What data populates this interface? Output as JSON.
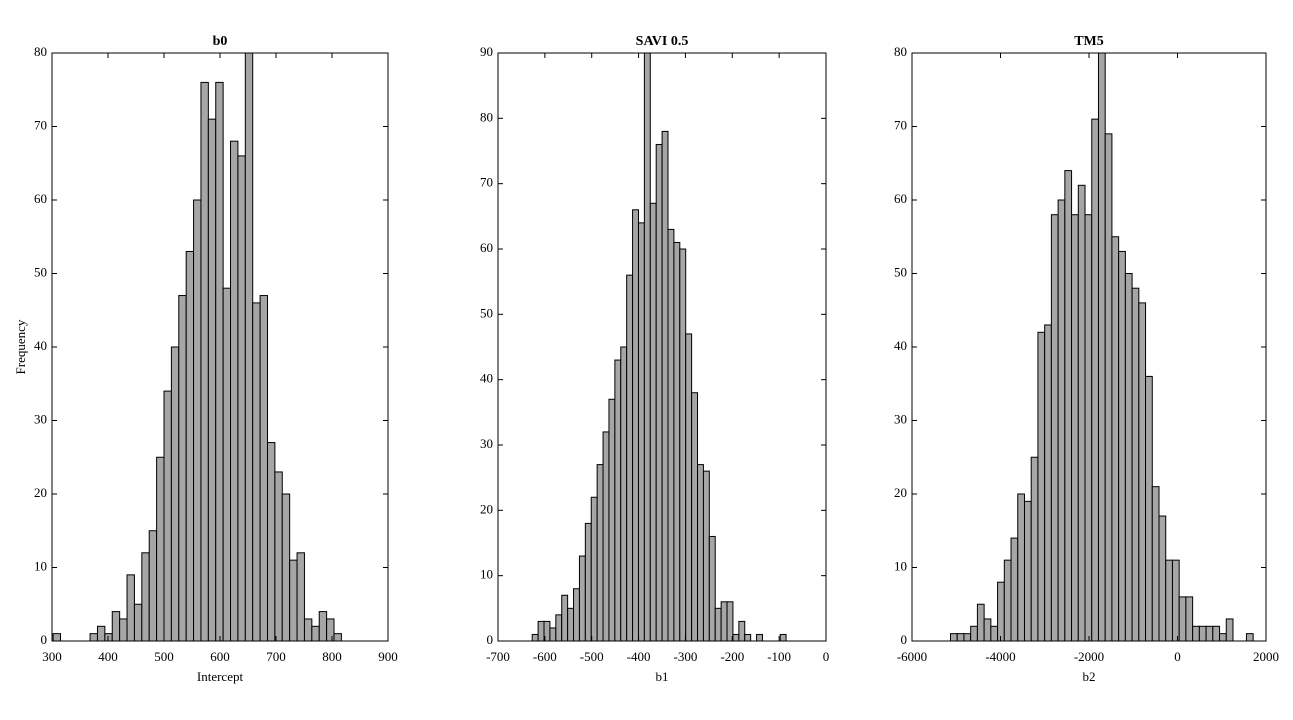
{
  "chart_data": [
    {
      "type": "histogram",
      "title": "b0",
      "xlabel": "Intercept",
      "ylabel": "Frequency",
      "color": "#a6a6a6",
      "xlim": [
        300,
        900
      ],
      "ylim": [
        0,
        80
      ],
      "xticks": [
        300,
        400,
        500,
        600,
        700,
        800,
        900
      ],
      "yticks": [
        0,
        10,
        20,
        30,
        40,
        50,
        60,
        70,
        80
      ],
      "bins": [
        302,
        315.2,
        328.4,
        341.6,
        354.8,
        368,
        381.2,
        394.4,
        407.6,
        420.8,
        434,
        447.2,
        460.4,
        473.6,
        486.8,
        500,
        513.2,
        526.4,
        539.6,
        552.8,
        566,
        579.2,
        592.4,
        605.6,
        618.8,
        632,
        645.2,
        658.4,
        671.6,
        684.8,
        698,
        711.2,
        724.4,
        737.6,
        750.8,
        764,
        777.2,
        790.4,
        803.6,
        816.8
      ],
      "values": [
        1,
        0,
        0,
        0,
        0,
        1,
        2,
        1,
        4,
        3,
        9,
        5,
        12,
        15,
        25,
        34,
        40,
        47,
        53,
        60,
        76,
        71,
        76,
        48,
        68,
        66,
        80,
        46,
        47,
        27,
        23,
        20,
        11,
        12,
        3,
        2,
        4,
        3,
        1
      ]
    },
    {
      "type": "histogram",
      "title": "SAVI 0.5",
      "xlabel": "b1",
      "color": "#a6a6a6",
      "xlim": [
        -700,
        0
      ],
      "ylim": [
        0,
        90
      ],
      "xticks": [
        -700,
        -600,
        -500,
        -400,
        -300,
        -200,
        -100,
        0
      ],
      "yticks": [
        0,
        10,
        20,
        30,
        40,
        50,
        60,
        70,
        80,
        90
      ],
      "bins": [
        -627,
        -614.4,
        -601.8,
        -589.2,
        -576.6,
        -564,
        -551.4,
        -538.8,
        -526.2,
        -513.6,
        -501,
        -488.4,
        -475.8,
        -463.2,
        -450.6,
        -438,
        -425.4,
        -412.8,
        -400.2,
        -387.6,
        -375,
        -362.4,
        -349.8,
        -337.2,
        -324.6,
        -312,
        -299.4,
        -286.8,
        -274.2,
        -261.6,
        -249,
        -236.4,
        -223.8,
        -211.2,
        -198.6,
        -186,
        -173.4,
        -160.8,
        -148.2,
        -135.6,
        -123,
        -110.4,
        -97.8,
        -85.2
      ],
      "values": [
        1,
        3,
        3,
        2,
        4,
        7,
        5,
        8,
        13,
        18,
        22,
        27,
        32,
        37,
        43,
        45,
        56,
        66,
        64,
        90,
        67,
        76,
        78,
        63,
        61,
        60,
        47,
        38,
        27,
        26,
        16,
        5,
        6,
        6,
        1,
        3,
        1,
        0,
        1,
        0,
        0,
        0,
        1
      ]
    },
    {
      "type": "histogram",
      "title": "TM5",
      "xlabel": "b2",
      "color": "#a6a6a6",
      "xlim": [
        -6000,
        2000
      ],
      "ylim": [
        0,
        80
      ],
      "xticks": [
        -6000,
        -4000,
        -2000,
        0,
        2000
      ],
      "yticks": [
        0,
        10,
        20,
        30,
        40,
        50,
        60,
        70,
        80
      ],
      "bins": [
        -5130,
        -4978,
        -4826,
        -4674,
        -4522,
        -4370,
        -4218,
        -4066,
        -3914,
        -3762,
        -3610,
        -3458,
        -3306,
        -3154,
        -3002,
        -2850,
        -2698,
        -2546,
        -2394,
        -2242,
        -2090,
        -1938,
        -1786,
        -1634,
        -1482,
        -1330,
        -1178,
        -1026,
        -874,
        -722,
        -570,
        -418,
        -266,
        -114,
        38,
        190,
        342,
        494,
        646,
        798,
        950,
        1102,
        1254,
        1406,
        1558,
        1710
      ],
      "values": [
        1,
        1,
        1,
        2,
        5,
        3,
        2,
        8,
        11,
        14,
        20,
        19,
        25,
        42,
        43,
        58,
        60,
        64,
        58,
        62,
        58,
        71,
        80,
        69,
        55,
        53,
        50,
        48,
        46,
        36,
        21,
        17,
        11,
        11,
        6,
        6,
        2,
        2,
        2,
        2,
        1,
        3,
        0,
        0,
        1
      ]
    }
  ]
}
